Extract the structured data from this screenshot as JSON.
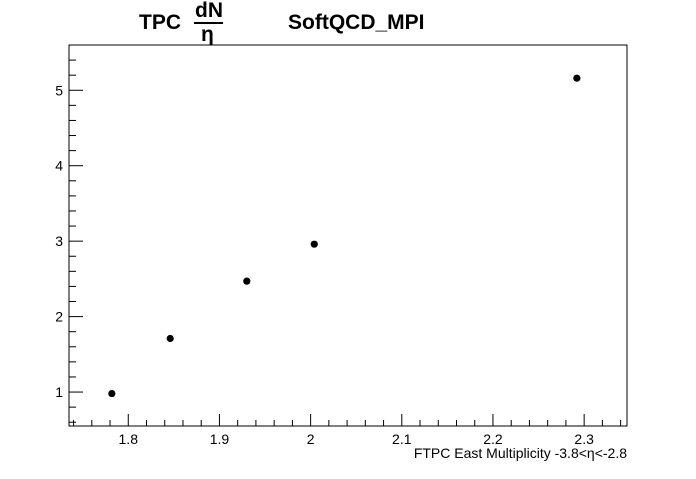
{
  "chart_data": {
    "type": "scatter",
    "title": {
      "prefix": "TPC",
      "fraction_numerator": "dN",
      "fraction_denominator": "η",
      "suffix": "SoftQCD_MPI"
    },
    "xlabel": "FTPC East Multiplicity -3.8<η<-2.8",
    "ylabel": "",
    "xlim": [
      1.735,
      2.347
    ],
    "ylim": [
      0.55,
      5.6
    ],
    "x_ticks": [
      "1.8",
      "1.9",
      "2",
      "2.1",
      "2.2",
      "2.3"
    ],
    "x_tick_values": [
      1.8,
      1.9,
      2.0,
      2.1,
      2.2,
      2.3
    ],
    "y_ticks": [
      "1",
      "2",
      "3",
      "4",
      "5"
    ],
    "y_tick_values": [
      1,
      2,
      3,
      4,
      5
    ],
    "grid": false,
    "legend": "none",
    "marker_color": "#000000",
    "series": [
      {
        "x": [
          1.782,
          1.846,
          1.93,
          2.004,
          2.292
        ],
        "y": [
          0.98,
          1.71,
          2.47,
          2.96,
          5.16
        ]
      }
    ]
  }
}
